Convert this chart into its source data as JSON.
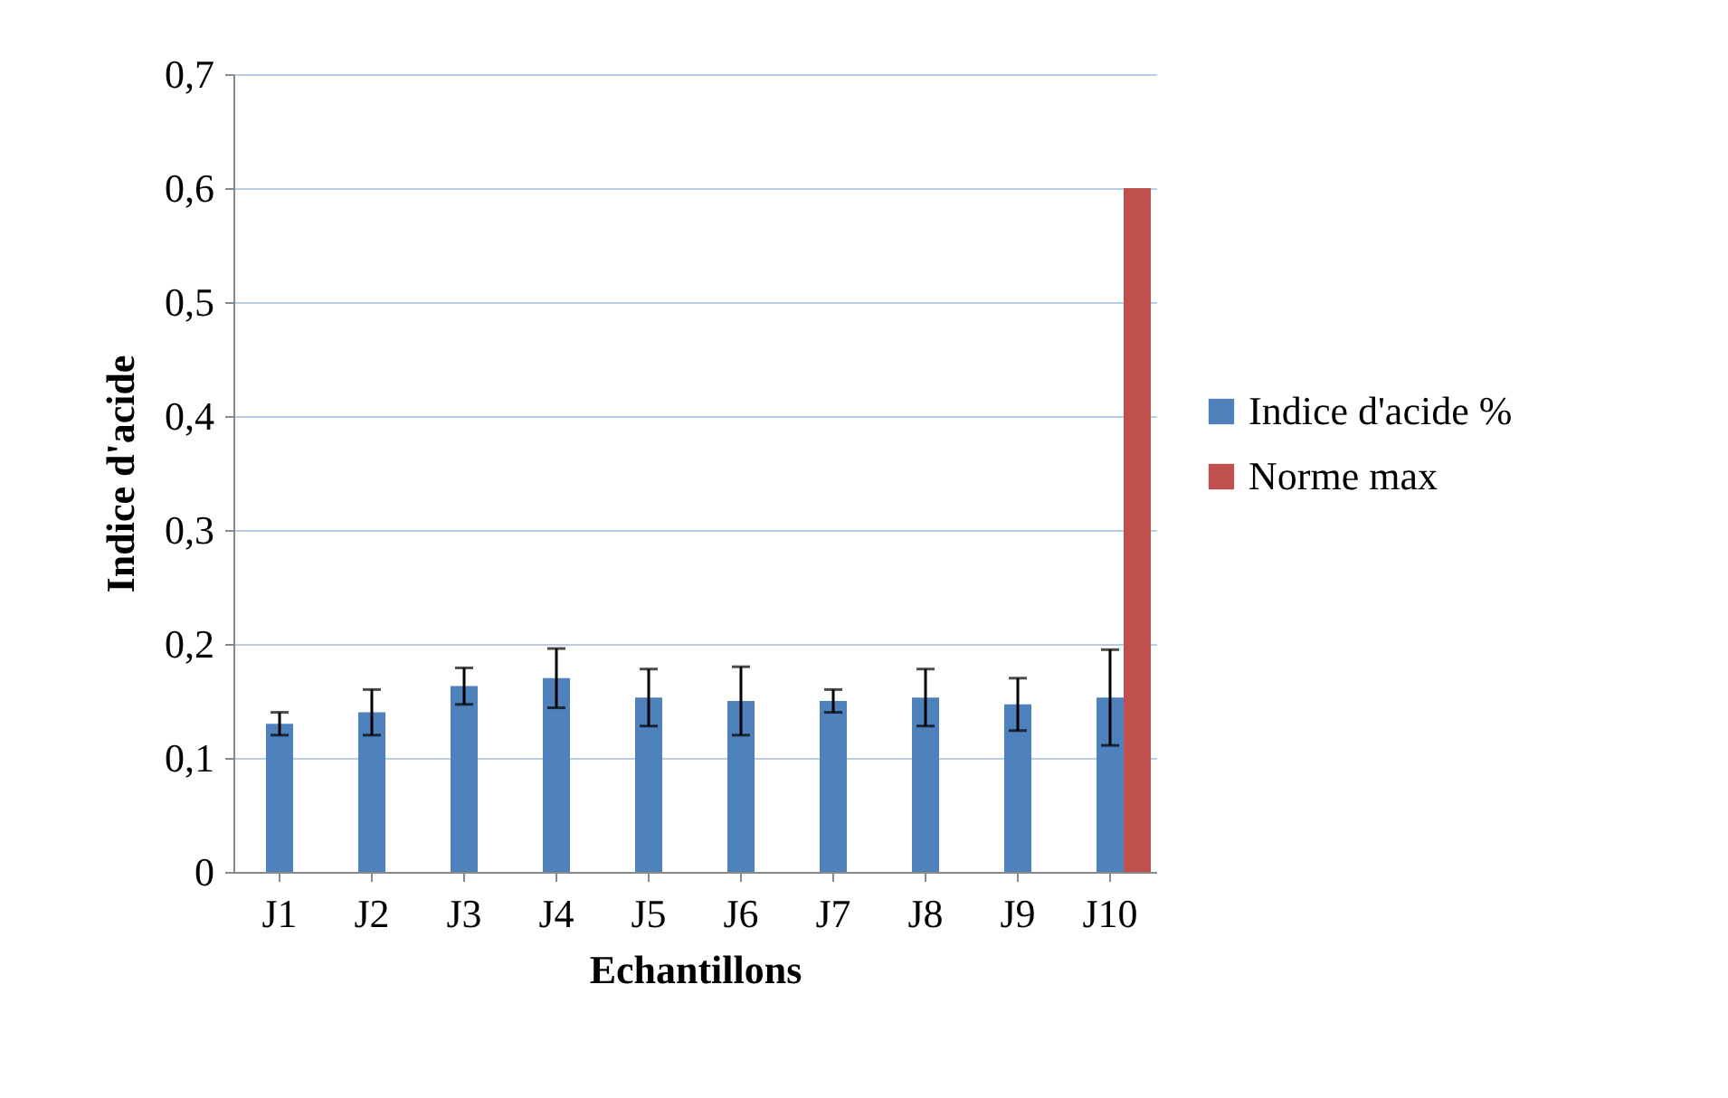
{
  "chart_data": {
    "type": "bar",
    "xlabel": "Echantillons",
    "ylabel": "Indice d'acide",
    "categories": [
      "J1",
      "J2",
      "J3",
      "J4",
      "J5",
      "J6",
      "J7",
      "J8",
      "J9",
      "J10"
    ],
    "series": [
      {
        "name": "Indice d'acide %",
        "color": "#4f81bd",
        "values": [
          0.13,
          0.14,
          0.163,
          0.17,
          0.153,
          0.15,
          0.15,
          0.153,
          0.147,
          0.153
        ],
        "errors": [
          0.01,
          0.02,
          0.016,
          0.026,
          0.025,
          0.03,
          0.01,
          0.025,
          0.023,
          0.042
        ]
      },
      {
        "name": "Norme max",
        "color": "#c0504d",
        "values": [
          null,
          null,
          null,
          null,
          null,
          null,
          null,
          null,
          null,
          0.6
        ]
      }
    ],
    "ylim": [
      0,
      0.7
    ],
    "yticks": [
      0,
      {
        "value": 0.1,
        "label": "0,1"
      },
      {
        "value": 0.2,
        "label": "0,2"
      },
      {
        "value": 0.3,
        "label": "0,3"
      },
      {
        "value": 0.4,
        "label": "0,4"
      },
      {
        "value": 0.5,
        "label": "0,5"
      },
      {
        "value": 0.6,
        "label": "0,6"
      },
      {
        "value": 0.7,
        "label": "0,7"
      }
    ],
    "grid": "y",
    "legend": "right"
  }
}
